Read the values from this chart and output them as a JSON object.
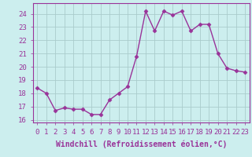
{
  "x": [
    0,
    1,
    2,
    3,
    4,
    5,
    6,
    7,
    8,
    9,
    10,
    11,
    12,
    13,
    14,
    15,
    16,
    17,
    18,
    19,
    20,
    21,
    22,
    23
  ],
  "y": [
    18.4,
    18.0,
    16.7,
    16.9,
    16.8,
    16.8,
    16.4,
    16.4,
    17.5,
    18.0,
    18.5,
    20.8,
    24.2,
    22.7,
    24.2,
    23.9,
    24.2,
    22.7,
    23.2,
    23.2,
    21.0,
    19.9,
    19.7,
    19.6
  ],
  "line_color": "#993399",
  "marker": "D",
  "marker_size": 2.5,
  "bg_color": "#cceeee",
  "grid_color": "#aacccc",
  "xlabel": "Windchill (Refroidissement éolien,°C)",
  "xlabel_fontsize": 7,
  "tick_fontsize": 6.5,
  "ylim": [
    15.8,
    24.8
  ],
  "yticks": [
    16,
    17,
    18,
    19,
    20,
    21,
    22,
    23,
    24
  ],
  "xlim": [
    -0.5,
    23.5
  ],
  "xticks": [
    0,
    1,
    2,
    3,
    4,
    5,
    6,
    7,
    8,
    9,
    10,
    11,
    12,
    13,
    14,
    15,
    16,
    17,
    18,
    19,
    20,
    21,
    22,
    23
  ]
}
